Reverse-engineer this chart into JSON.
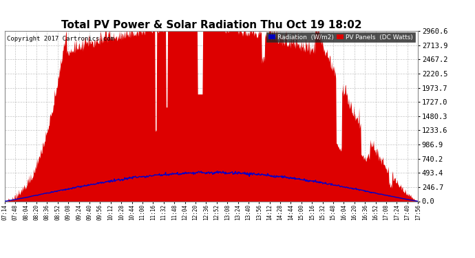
{
  "title": "Total PV Power & Solar Radiation Thu Oct 19 18:02",
  "copyright": "Copyright 2017 Cartronics.com",
  "ylabel_right": [
    "0.0",
    "246.7",
    "493.4",
    "740.2",
    "986.9",
    "1233.6",
    "1480.3",
    "1727.0",
    "1973.7",
    "2220.5",
    "2467.2",
    "2713.9",
    "2960.6"
  ],
  "ymax": 2960.6,
  "ymin": 0.0,
  "bg_color": "#ffffff",
  "plot_bg_color": "#ffffff",
  "grid_color": "#aaaaaa",
  "pv_color": "#dd0000",
  "radiation_color": "#0000cc",
  "legend_radiation_bg": "#0000bb",
  "legend_pv_bg": "#dd0000",
  "x_labels": [
    "07:14",
    "07:48",
    "08:04",
    "08:20",
    "08:36",
    "08:52",
    "09:08",
    "09:24",
    "09:40",
    "09:56",
    "10:12",
    "10:28",
    "10:44",
    "11:00",
    "11:16",
    "11:32",
    "11:48",
    "12:04",
    "12:20",
    "12:36",
    "12:52",
    "13:08",
    "13:24",
    "13:40",
    "13:56",
    "14:12",
    "14:28",
    "14:44",
    "15:00",
    "15:16",
    "15:32",
    "15:48",
    "16:04",
    "16:20",
    "16:36",
    "16:52",
    "17:08",
    "17:24",
    "17:40",
    "17:56"
  ]
}
